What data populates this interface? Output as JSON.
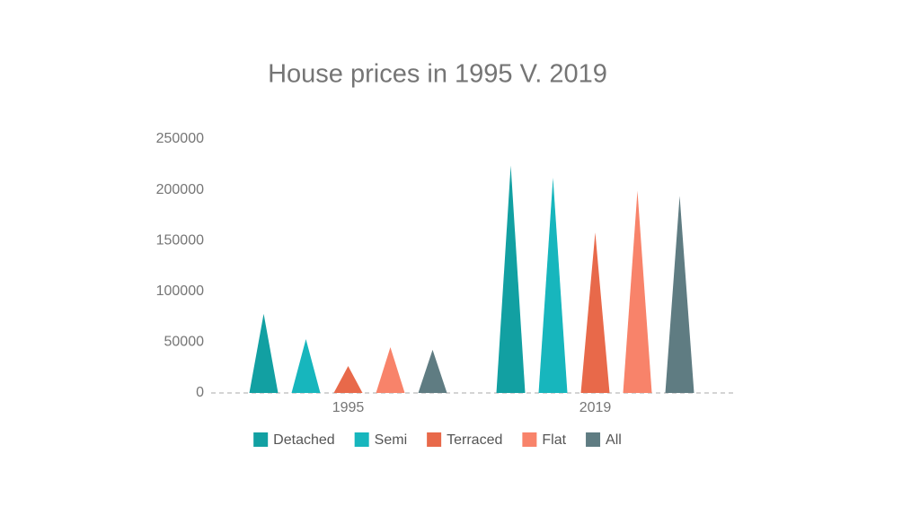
{
  "chart_data": {
    "type": "bar",
    "bar_shape": "triangle",
    "title": "House prices in 1995 V. 2019",
    "categories": [
      "1995",
      "2019"
    ],
    "series": [
      {
        "name": "Detached",
        "color": "#12a0a2",
        "values": [
          78000,
          224000
        ]
      },
      {
        "name": "Semi",
        "color": "#17b6bd",
        "values": [
          53000,
          212000
        ]
      },
      {
        "name": "Terraced",
        "color": "#e8694a",
        "values": [
          26500,
          158000
        ]
      },
      {
        "name": "Flat",
        "color": "#f8836a",
        "values": [
          45000,
          199000
        ]
      },
      {
        "name": "All",
        "color": "#5f7c82",
        "values": [
          42500,
          194000
        ]
      }
    ],
    "ylim": [
      0,
      250000
    ],
    "yticks": [
      0,
      50000,
      100000,
      150000,
      200000,
      250000
    ],
    "grid": false,
    "legend": "bottom"
  }
}
